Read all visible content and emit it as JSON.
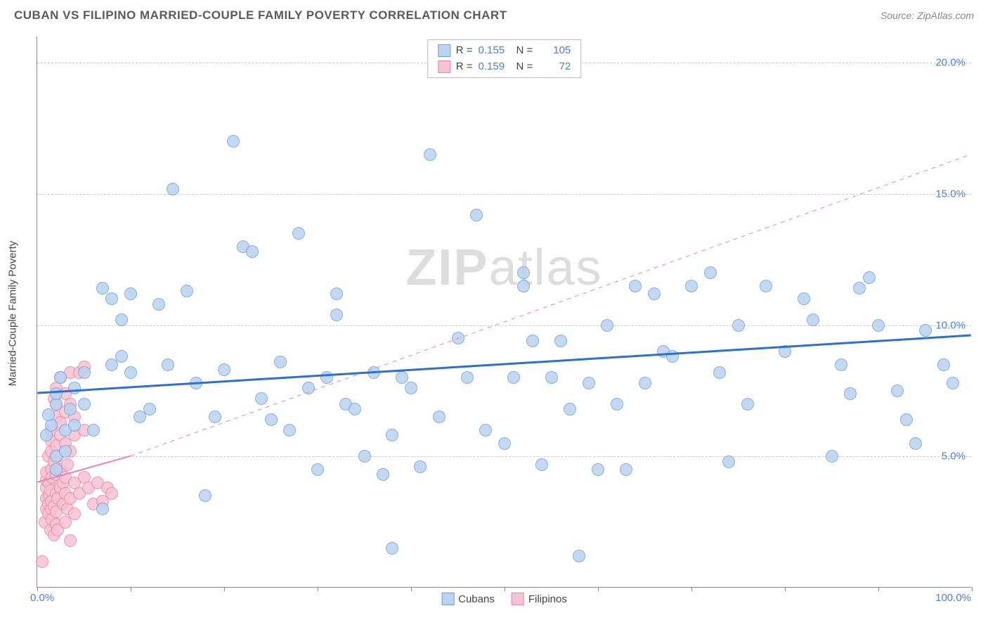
{
  "header": {
    "title": "CUBAN VS FILIPINO MARRIED-COUPLE FAMILY POVERTY CORRELATION CHART",
    "source": "Source: ZipAtlas.com"
  },
  "chart": {
    "type": "scatter",
    "y_axis_title": "Married-Couple Family Poverty",
    "watermark": "ZIPatlas",
    "xlim": [
      0,
      100
    ],
    "ylim": [
      0,
      21
    ],
    "x_left_label": "0.0%",
    "x_right_label": "100.0%",
    "x_ticks": [
      0,
      10,
      20,
      30,
      40,
      50,
      60,
      70,
      80,
      90,
      100
    ],
    "y_gridlines": [
      {
        "value": 5,
        "label": "5.0%"
      },
      {
        "value": 10,
        "label": "10.0%"
      },
      {
        "value": 15,
        "label": "15.0%"
      },
      {
        "value": 20,
        "label": "20.0%"
      }
    ],
    "colors": {
      "cuban_fill": "#b9d3f0",
      "cuban_stroke": "#6fa3de",
      "filipino_fill": "#f6c3d2",
      "filipino_stroke": "#e986a8",
      "cuban_line": "#2f6fd0",
      "filipino_line": "#e986a8",
      "grid": "#cccccc",
      "axis": "#888888",
      "label_blue": "#4a7fd8"
    },
    "marker_radius": 9,
    "stats_box": [
      {
        "series": "cubans",
        "r_label": "R =",
        "r": "0.155",
        "n_label": "N =",
        "n": "105"
      },
      {
        "series": "filipinos",
        "r_label": "R =",
        "r": "0.159",
        "n_label": "N =",
        "n": "72"
      }
    ],
    "legend": [
      {
        "series": "cubans",
        "label": "Cubans"
      },
      {
        "series": "filipinos",
        "label": "Filipinos"
      }
    ],
    "regression_lines": {
      "cubans": {
        "x1": 0,
        "y1": 7.4,
        "x2": 100,
        "y2": 9.6,
        "dash": false,
        "width": 3
      },
      "filipinos_solid": {
        "x1": 0,
        "y1": 4.0,
        "x2": 10,
        "y2": 5.0,
        "dash": false,
        "width": 2
      },
      "filipinos_dash": {
        "x1": 10,
        "y1": 5.0,
        "x2": 100,
        "y2": 16.5,
        "dash": true,
        "width": 1
      }
    },
    "series": {
      "cubans": [
        [
          1,
          5.8
        ],
        [
          1.5,
          6.2
        ],
        [
          1.2,
          6.6
        ],
        [
          2,
          5.0
        ],
        [
          2,
          4.5
        ],
        [
          2,
          7.0
        ],
        [
          2,
          7.4
        ],
        [
          2.5,
          8.0
        ],
        [
          3,
          6.0
        ],
        [
          3,
          5.2
        ],
        [
          3.5,
          6.8
        ],
        [
          4,
          6.2
        ],
        [
          4,
          7.6
        ],
        [
          5,
          8.2
        ],
        [
          5,
          7.0
        ],
        [
          6,
          6.0
        ],
        [
          7,
          3.0
        ],
        [
          7,
          11.4
        ],
        [
          8,
          8.5
        ],
        [
          8,
          11.0
        ],
        [
          9,
          10.2
        ],
        [
          9,
          8.8
        ],
        [
          10,
          8.2
        ],
        [
          10,
          11.2
        ],
        [
          11,
          6.5
        ],
        [
          12,
          6.8
        ],
        [
          13,
          10.8
        ],
        [
          14,
          8.5
        ],
        [
          14.5,
          15.2
        ],
        [
          16,
          11.3
        ],
        [
          17,
          7.8
        ],
        [
          18,
          3.5
        ],
        [
          19,
          6.5
        ],
        [
          20,
          8.3
        ],
        [
          21,
          17.0
        ],
        [
          22,
          13.0
        ],
        [
          23,
          12.8
        ],
        [
          24,
          7.2
        ],
        [
          25,
          6.4
        ],
        [
          26,
          8.6
        ],
        [
          27,
          6.0
        ],
        [
          28,
          13.5
        ],
        [
          29,
          7.6
        ],
        [
          30,
          4.5
        ],
        [
          31,
          8.0
        ],
        [
          32,
          11.2
        ],
        [
          32,
          10.4
        ],
        [
          33,
          7.0
        ],
        [
          34,
          6.8
        ],
        [
          35,
          5.0
        ],
        [
          36,
          8.2
        ],
        [
          37,
          4.3
        ],
        [
          38,
          5.8
        ],
        [
          38,
          1.5
        ],
        [
          39,
          8.0
        ],
        [
          40,
          7.6
        ],
        [
          41,
          4.6
        ],
        [
          42,
          16.5
        ],
        [
          43,
          6.5
        ],
        [
          45,
          9.5
        ],
        [
          46,
          8.0
        ],
        [
          47,
          14.2
        ],
        [
          48,
          6.0
        ],
        [
          50,
          5.5
        ],
        [
          51,
          8.0
        ],
        [
          52,
          12.0
        ],
        [
          52,
          11.5
        ],
        [
          53,
          9.4
        ],
        [
          54,
          4.7
        ],
        [
          55,
          8.0
        ],
        [
          56,
          9.4
        ],
        [
          57,
          6.8
        ],
        [
          58,
          1.2
        ],
        [
          59,
          7.8
        ],
        [
          60,
          4.5
        ],
        [
          61,
          10.0
        ],
        [
          62,
          7.0
        ],
        [
          63,
          4.5
        ],
        [
          64,
          11.5
        ],
        [
          65,
          7.8
        ],
        [
          66,
          11.2
        ],
        [
          67,
          9.0
        ],
        [
          68,
          8.8
        ],
        [
          70,
          11.5
        ],
        [
          72,
          12.0
        ],
        [
          73,
          8.2
        ],
        [
          74,
          4.8
        ],
        [
          75,
          10.0
        ],
        [
          76,
          7.0
        ],
        [
          78,
          11.5
        ],
        [
          80,
          9.0
        ],
        [
          82,
          11.0
        ],
        [
          83,
          10.2
        ],
        [
          85,
          5.0
        ],
        [
          86,
          8.5
        ],
        [
          87,
          7.4
        ],
        [
          88,
          11.4
        ],
        [
          89,
          11.8
        ],
        [
          90,
          10.0
        ],
        [
          92,
          7.5
        ],
        [
          93,
          6.4
        ],
        [
          94,
          5.5
        ],
        [
          95,
          9.8
        ],
        [
          97,
          8.5
        ],
        [
          98,
          7.8
        ]
      ],
      "filipinos": [
        [
          0.5,
          1.0
        ],
        [
          0.8,
          2.5
        ],
        [
          1,
          3.0
        ],
        [
          1,
          3.4
        ],
        [
          1,
          3.8
        ],
        [
          1,
          4.1
        ],
        [
          1,
          4.4
        ],
        [
          1.2,
          2.8
        ],
        [
          1.2,
          3.2
        ],
        [
          1.2,
          5.0
        ],
        [
          1.3,
          3.5
        ],
        [
          1.3,
          4.0
        ],
        [
          1.4,
          2.2
        ],
        [
          1.4,
          3.7
        ],
        [
          1.5,
          3.0
        ],
        [
          1.5,
          3.3
        ],
        [
          1.5,
          4.5
        ],
        [
          1.5,
          5.2
        ],
        [
          1.5,
          5.6
        ],
        [
          1.5,
          6.0
        ],
        [
          1.6,
          2.6
        ],
        [
          1.6,
          4.2
        ],
        [
          1.8,
          2.0
        ],
        [
          1.8,
          3.1
        ],
        [
          1.8,
          4.8
        ],
        [
          1.8,
          7.2
        ],
        [
          2,
          2.4
        ],
        [
          2,
          2.9
        ],
        [
          2,
          3.6
        ],
        [
          2,
          4.3
        ],
        [
          2,
          5.4
        ],
        [
          2,
          6.5
        ],
        [
          2,
          7.0
        ],
        [
          2,
          7.6
        ],
        [
          2.2,
          2.2
        ],
        [
          2.2,
          3.4
        ],
        [
          2.2,
          5.0
        ],
        [
          2.5,
          3.8
        ],
        [
          2.5,
          4.5
        ],
        [
          2.5,
          5.8
        ],
        [
          2.5,
          6.3
        ],
        [
          2.5,
          8.0
        ],
        [
          2.8,
          3.2
        ],
        [
          2.8,
          4.0
        ],
        [
          3,
          2.5
        ],
        [
          3,
          3.6
        ],
        [
          3,
          4.2
        ],
        [
          3,
          5.5
        ],
        [
          3,
          6.7
        ],
        [
          3,
          7.4
        ],
        [
          3.2,
          3.0
        ],
        [
          3.2,
          4.7
        ],
        [
          3.5,
          1.8
        ],
        [
          3.5,
          3.4
        ],
        [
          3.5,
          5.2
        ],
        [
          3.5,
          7.0
        ],
        [
          3.5,
          8.2
        ],
        [
          4,
          2.8
        ],
        [
          4,
          4.0
        ],
        [
          4,
          5.8
        ],
        [
          4,
          6.5
        ],
        [
          4.5,
          3.6
        ],
        [
          4.5,
          8.2
        ],
        [
          5,
          4.2
        ],
        [
          5,
          6.0
        ],
        [
          5,
          8.4
        ],
        [
          5.5,
          3.8
        ],
        [
          6,
          3.2
        ],
        [
          6.5,
          4.0
        ],
        [
          7,
          3.3
        ],
        [
          7.5,
          3.8
        ],
        [
          8,
          3.6
        ]
      ]
    }
  }
}
